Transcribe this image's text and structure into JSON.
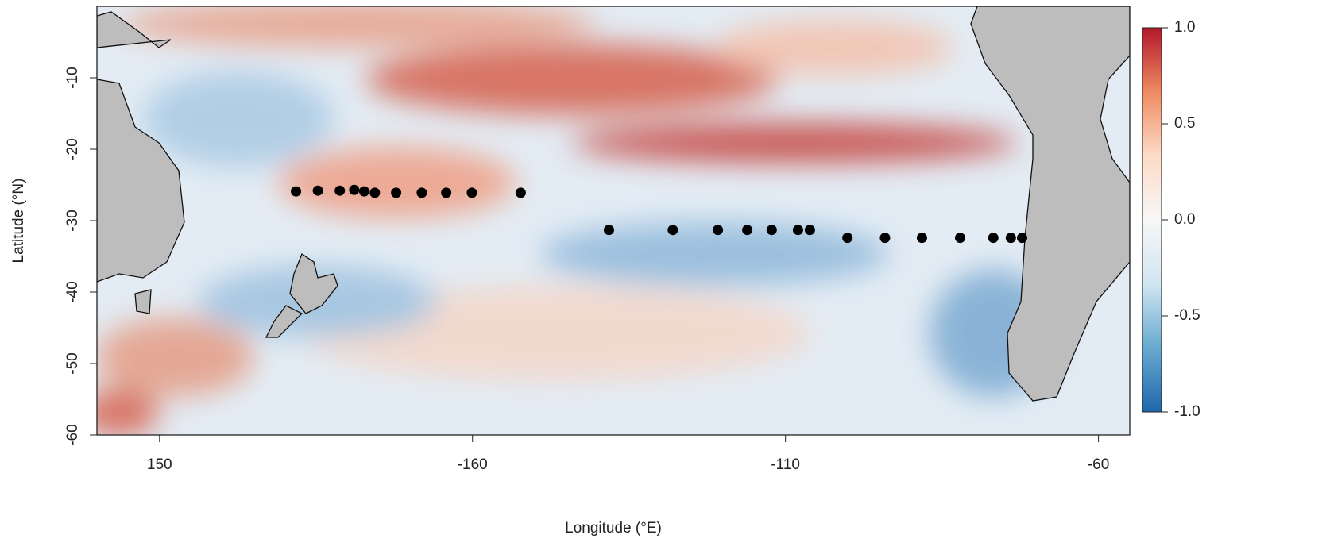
{
  "chart_data": {
    "type": "scatter",
    "xlabel": "Longitude (°E)",
    "ylabel": "Latitude (°N)",
    "x": [
      171.8,
      175.3,
      178.8,
      181.1,
      182.7,
      184.4,
      187.8,
      191.9,
      195.8,
      199.9,
      207.7,
      221.8,
      232.0,
      239.2,
      243.9,
      247.8,
      252.0,
      253.9,
      259.9,
      265.9,
      271.8,
      277.9,
      283.2,
      286.0,
      287.8
    ],
    "values": [
      -25.9,
      -25.8,
      -25.8,
      -25.7,
      -25.9,
      -26.1,
      -26.1,
      -26.1,
      -26.1,
      -26.1,
      -26.1,
      -31.3,
      -31.3,
      -31.3,
      -31.3,
      -31.3,
      -31.3,
      -31.3,
      -32.4,
      -32.4,
      -32.4,
      -32.4,
      -32.4,
      -32.4,
      -32.4
    ],
    "color": "#000000",
    "xlim": [
      140,
      305
    ],
    "ylim": [
      -60,
      0
    ],
    "xticks": [
      150,
      {
        "value": 200,
        "label": "-160"
      },
      {
        "value": 250,
        "label": "-110"
      },
      {
        "value": 300,
        "label": "-60"
      }
    ],
    "yticks": [
      -60,
      -50,
      -40,
      -30,
      -20,
      -10
    ],
    "colorbar": {
      "lim": [
        -1,
        1
      ],
      "ticks": [
        {
          "value": -1,
          "label": "-1.0"
        },
        -0.5,
        {
          "value": 0,
          "label": "0.0"
        },
        0.5,
        {
          "value": 1,
          "label": "1.0"
        }
      ],
      "colors": [
        "#2166ac",
        "#67a9cf",
        "#d1e5f0",
        "#f7f7f7",
        "#fddbc7",
        "#ef8a62",
        "#b2182b"
      ]
    }
  }
}
